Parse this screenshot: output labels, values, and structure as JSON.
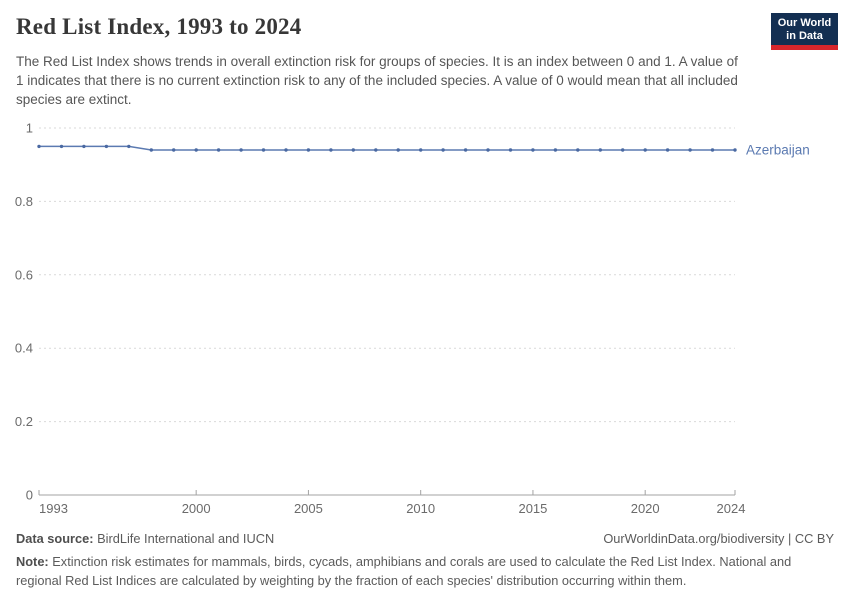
{
  "header": {
    "title": "Red List Index, 1993 to 2024",
    "subtitle": "The Red List Index shows trends in overall extinction risk for groups of species. It is an index between 0 and 1. A value of 1 indicates that there is no current extinction risk to any of the included species. A value of 0 would mean that all included species are extinct.",
    "logo_line1": "Our World",
    "logo_line2": "in Data"
  },
  "chart_data": {
    "type": "line",
    "title": "Red List Index, 1993 to 2024",
    "xlabel": "",
    "ylabel": "",
    "ylim": [
      0,
      1
    ],
    "yticks": [
      0,
      0.2,
      0.4,
      0.6,
      0.8,
      1
    ],
    "xticks": [
      1993,
      2000,
      2005,
      2010,
      2015,
      2020,
      2024
    ],
    "grid": "horizontal-dashed",
    "legend_position": "end-of-line-label",
    "x": [
      1993,
      1994,
      1995,
      1996,
      1997,
      1998,
      1999,
      2000,
      2001,
      2002,
      2003,
      2004,
      2005,
      2006,
      2007,
      2008,
      2009,
      2010,
      2011,
      2012,
      2013,
      2014,
      2015,
      2016,
      2017,
      2018,
      2019,
      2020,
      2021,
      2022,
      2023,
      2024
    ],
    "series": [
      {
        "name": "Azerbaijan",
        "color": "#5b7ab1",
        "point_color": "#4a69a2",
        "values": [
          0.95,
          0.95,
          0.95,
          0.95,
          0.95,
          0.94,
          0.94,
          0.94,
          0.94,
          0.94,
          0.94,
          0.94,
          0.94,
          0.94,
          0.94,
          0.94,
          0.94,
          0.94,
          0.94,
          0.94,
          0.94,
          0.94,
          0.94,
          0.94,
          0.94,
          0.94,
          0.94,
          0.94,
          0.94,
          0.94,
          0.94,
          0.94
        ]
      }
    ],
    "colors": {
      "gridline": "#d9d9d9",
      "axis_line": "#a3a3a3",
      "tick_label": "#6b6b6b"
    }
  },
  "footer": {
    "data_source_label": "Data source:",
    "data_source_text": " BirdLife International and IUCN",
    "attribution": "OurWorldinData.org/biodiversity | CC BY",
    "note_label": "Note:",
    "note_text": " Extinction risk estimates for mammals, birds, cycads, amphibians and corals are used to calculate the Red List Index. National and regional Red List Indices are calculated by weighting by the fraction of each species' distribution occurring within them."
  }
}
